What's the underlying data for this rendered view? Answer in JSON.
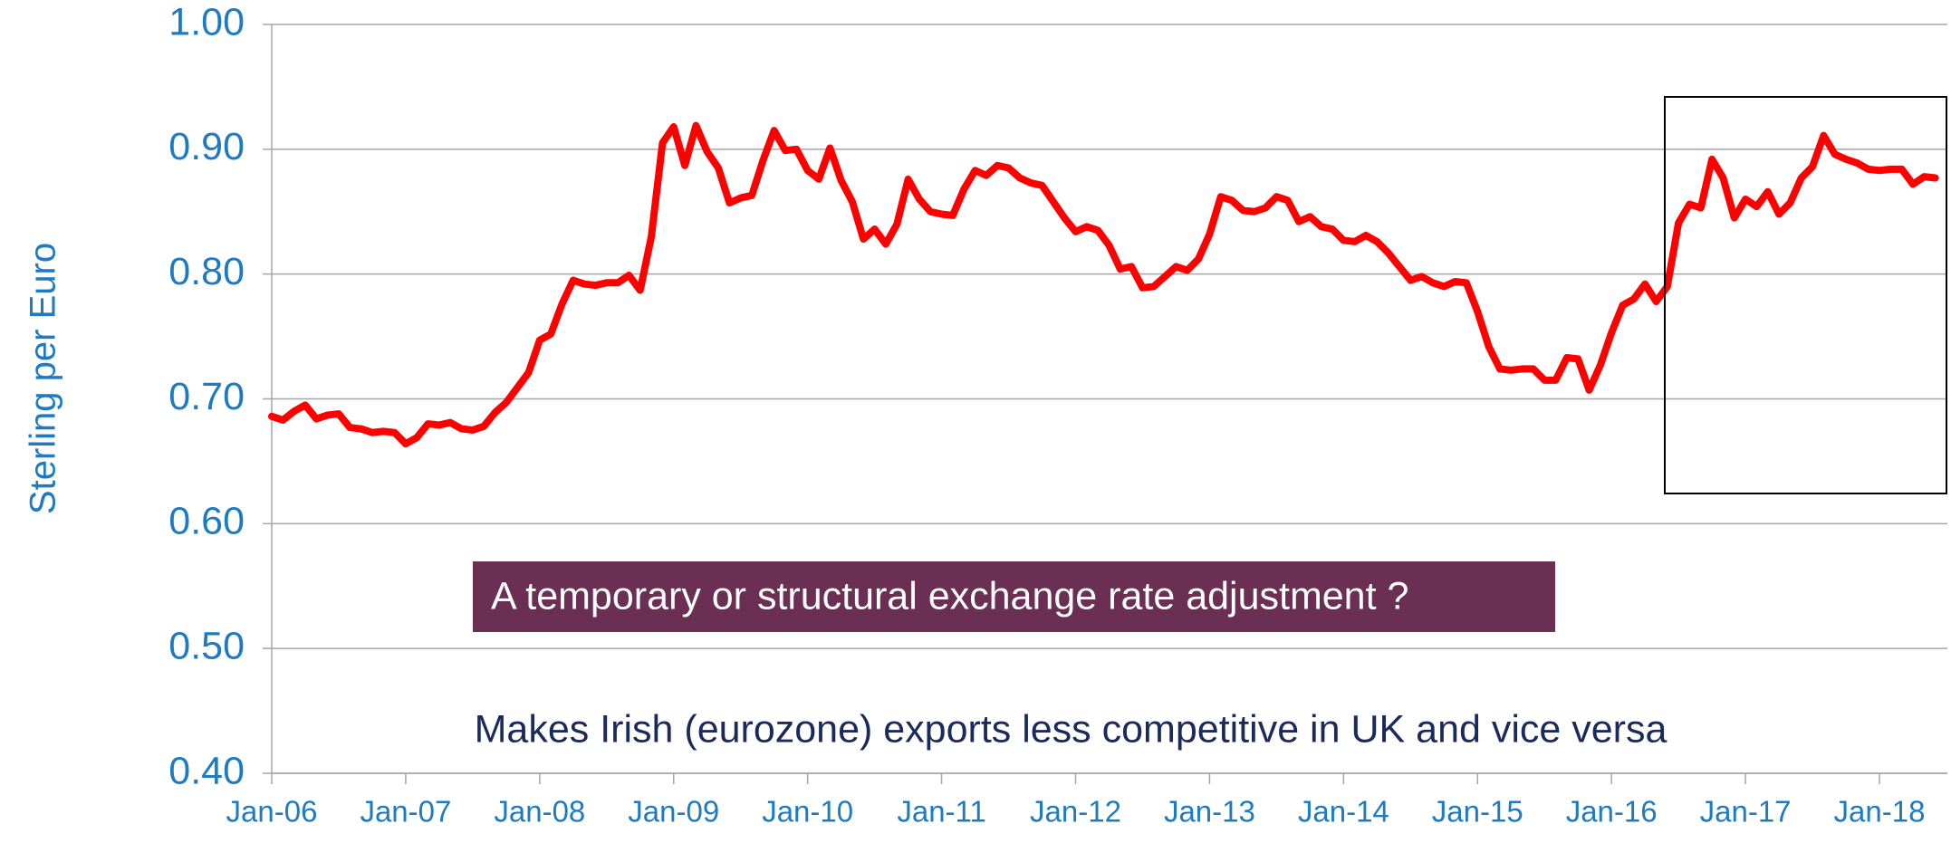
{
  "chart_data": {
    "type": "line",
    "y_label": "Sterling per Euro",
    "annotations": [
      "A temporary or structural exchange rate adjustment ?",
      "Makes Irish (eurozone) exports less competitive in UK and vice versa"
    ],
    "color": "#ff0000",
    "grid": true,
    "ylim": [
      0.4,
      1.0
    ],
    "yticks": [
      {
        "value": 0.4,
        "label": "0.40"
      },
      {
        "value": 0.5,
        "label": "0.50"
      },
      {
        "value": 0.6,
        "label": "0.60"
      },
      {
        "value": 0.7,
        "label": "0.70"
      },
      {
        "value": 0.8,
        "label": "0.80"
      },
      {
        "value": 0.9,
        "label": "0.90"
      },
      {
        "value": 1.0,
        "label": "1.00"
      }
    ],
    "categories": [
      "Jan-06",
      null,
      null,
      null,
      null,
      null,
      null,
      null,
      null,
      null,
      null,
      null,
      "Jan-07",
      null,
      null,
      null,
      null,
      null,
      null,
      null,
      null,
      null,
      null,
      null,
      "Jan-08",
      null,
      null,
      null,
      null,
      null,
      null,
      null,
      null,
      null,
      null,
      null,
      "Jan-09",
      null,
      null,
      null,
      null,
      null,
      null,
      null,
      null,
      null,
      null,
      null,
      "Jan-10",
      null,
      null,
      null,
      null,
      null,
      null,
      null,
      null,
      null,
      null,
      null,
      "Jan-11",
      null,
      null,
      null,
      null,
      null,
      null,
      null,
      null,
      null,
      null,
      null,
      "Jan-12",
      null,
      null,
      null,
      null,
      null,
      null,
      null,
      null,
      null,
      null,
      null,
      "Jan-13",
      null,
      null,
      null,
      null,
      null,
      null,
      null,
      null,
      null,
      null,
      null,
      "Jan-14",
      null,
      null,
      null,
      null,
      null,
      null,
      null,
      null,
      null,
      null,
      null,
      "Jan-15",
      null,
      null,
      null,
      null,
      null,
      null,
      null,
      null,
      null,
      null,
      null,
      "Jan-16",
      null,
      null,
      null,
      null,
      null,
      null,
      null,
      null,
      null,
      null,
      null,
      "Jan-17",
      null,
      null,
      null,
      null,
      null,
      null,
      null,
      null,
      null,
      null,
      null,
      "Jan-18",
      null,
      null,
      null,
      null,
      null
    ],
    "values": [
      0.686,
      0.683,
      0.69,
      0.695,
      0.684,
      0.687,
      0.688,
      0.677,
      0.676,
      0.673,
      0.674,
      0.673,
      0.664,
      0.669,
      0.68,
      0.679,
      0.681,
      0.676,
      0.675,
      0.678,
      0.689,
      0.697,
      0.709,
      0.721,
      0.747,
      0.752,
      0.776,
      0.795,
      0.792,
      0.791,
      0.793,
      0.793,
      0.799,
      0.787,
      0.83,
      0.905,
      0.918,
      0.887,
      0.919,
      0.898,
      0.885,
      0.857,
      0.861,
      0.863,
      0.891,
      0.915,
      0.899,
      0.9,
      0.883,
      0.876,
      0.901,
      0.875,
      0.858,
      0.828,
      0.836,
      0.824,
      0.84,
      0.876,
      0.86,
      0.85,
      0.848,
      0.847,
      0.868,
      0.883,
      0.879,
      0.887,
      0.885,
      0.877,
      0.873,
      0.871,
      0.858,
      0.845,
      0.834,
      0.838,
      0.835,
      0.823,
      0.804,
      0.806,
      0.789,
      0.79,
      0.798,
      0.806,
      0.803,
      0.812,
      0.832,
      0.862,
      0.859,
      0.851,
      0.85,
      0.853,
      0.862,
      0.859,
      0.842,
      0.846,
      0.838,
      0.836,
      0.827,
      0.826,
      0.831,
      0.826,
      0.817,
      0.806,
      0.795,
      0.798,
      0.793,
      0.79,
      0.794,
      0.793,
      0.77,
      0.742,
      0.724,
      0.723,
      0.724,
      0.724,
      0.715,
      0.715,
      0.733,
      0.732,
      0.707,
      0.727,
      0.753,
      0.775,
      0.78,
      0.792,
      0.778,
      0.79,
      0.841,
      0.856,
      0.853,
      0.892,
      0.877,
      0.845,
      0.86,
      0.854,
      0.866,
      0.848,
      0.857,
      0.877,
      0.886,
      0.911,
      0.896,
      0.892,
      0.889,
      0.884,
      0.883,
      0.884,
      0.884,
      0.872,
      0.878,
      0.877
    ]
  }
}
